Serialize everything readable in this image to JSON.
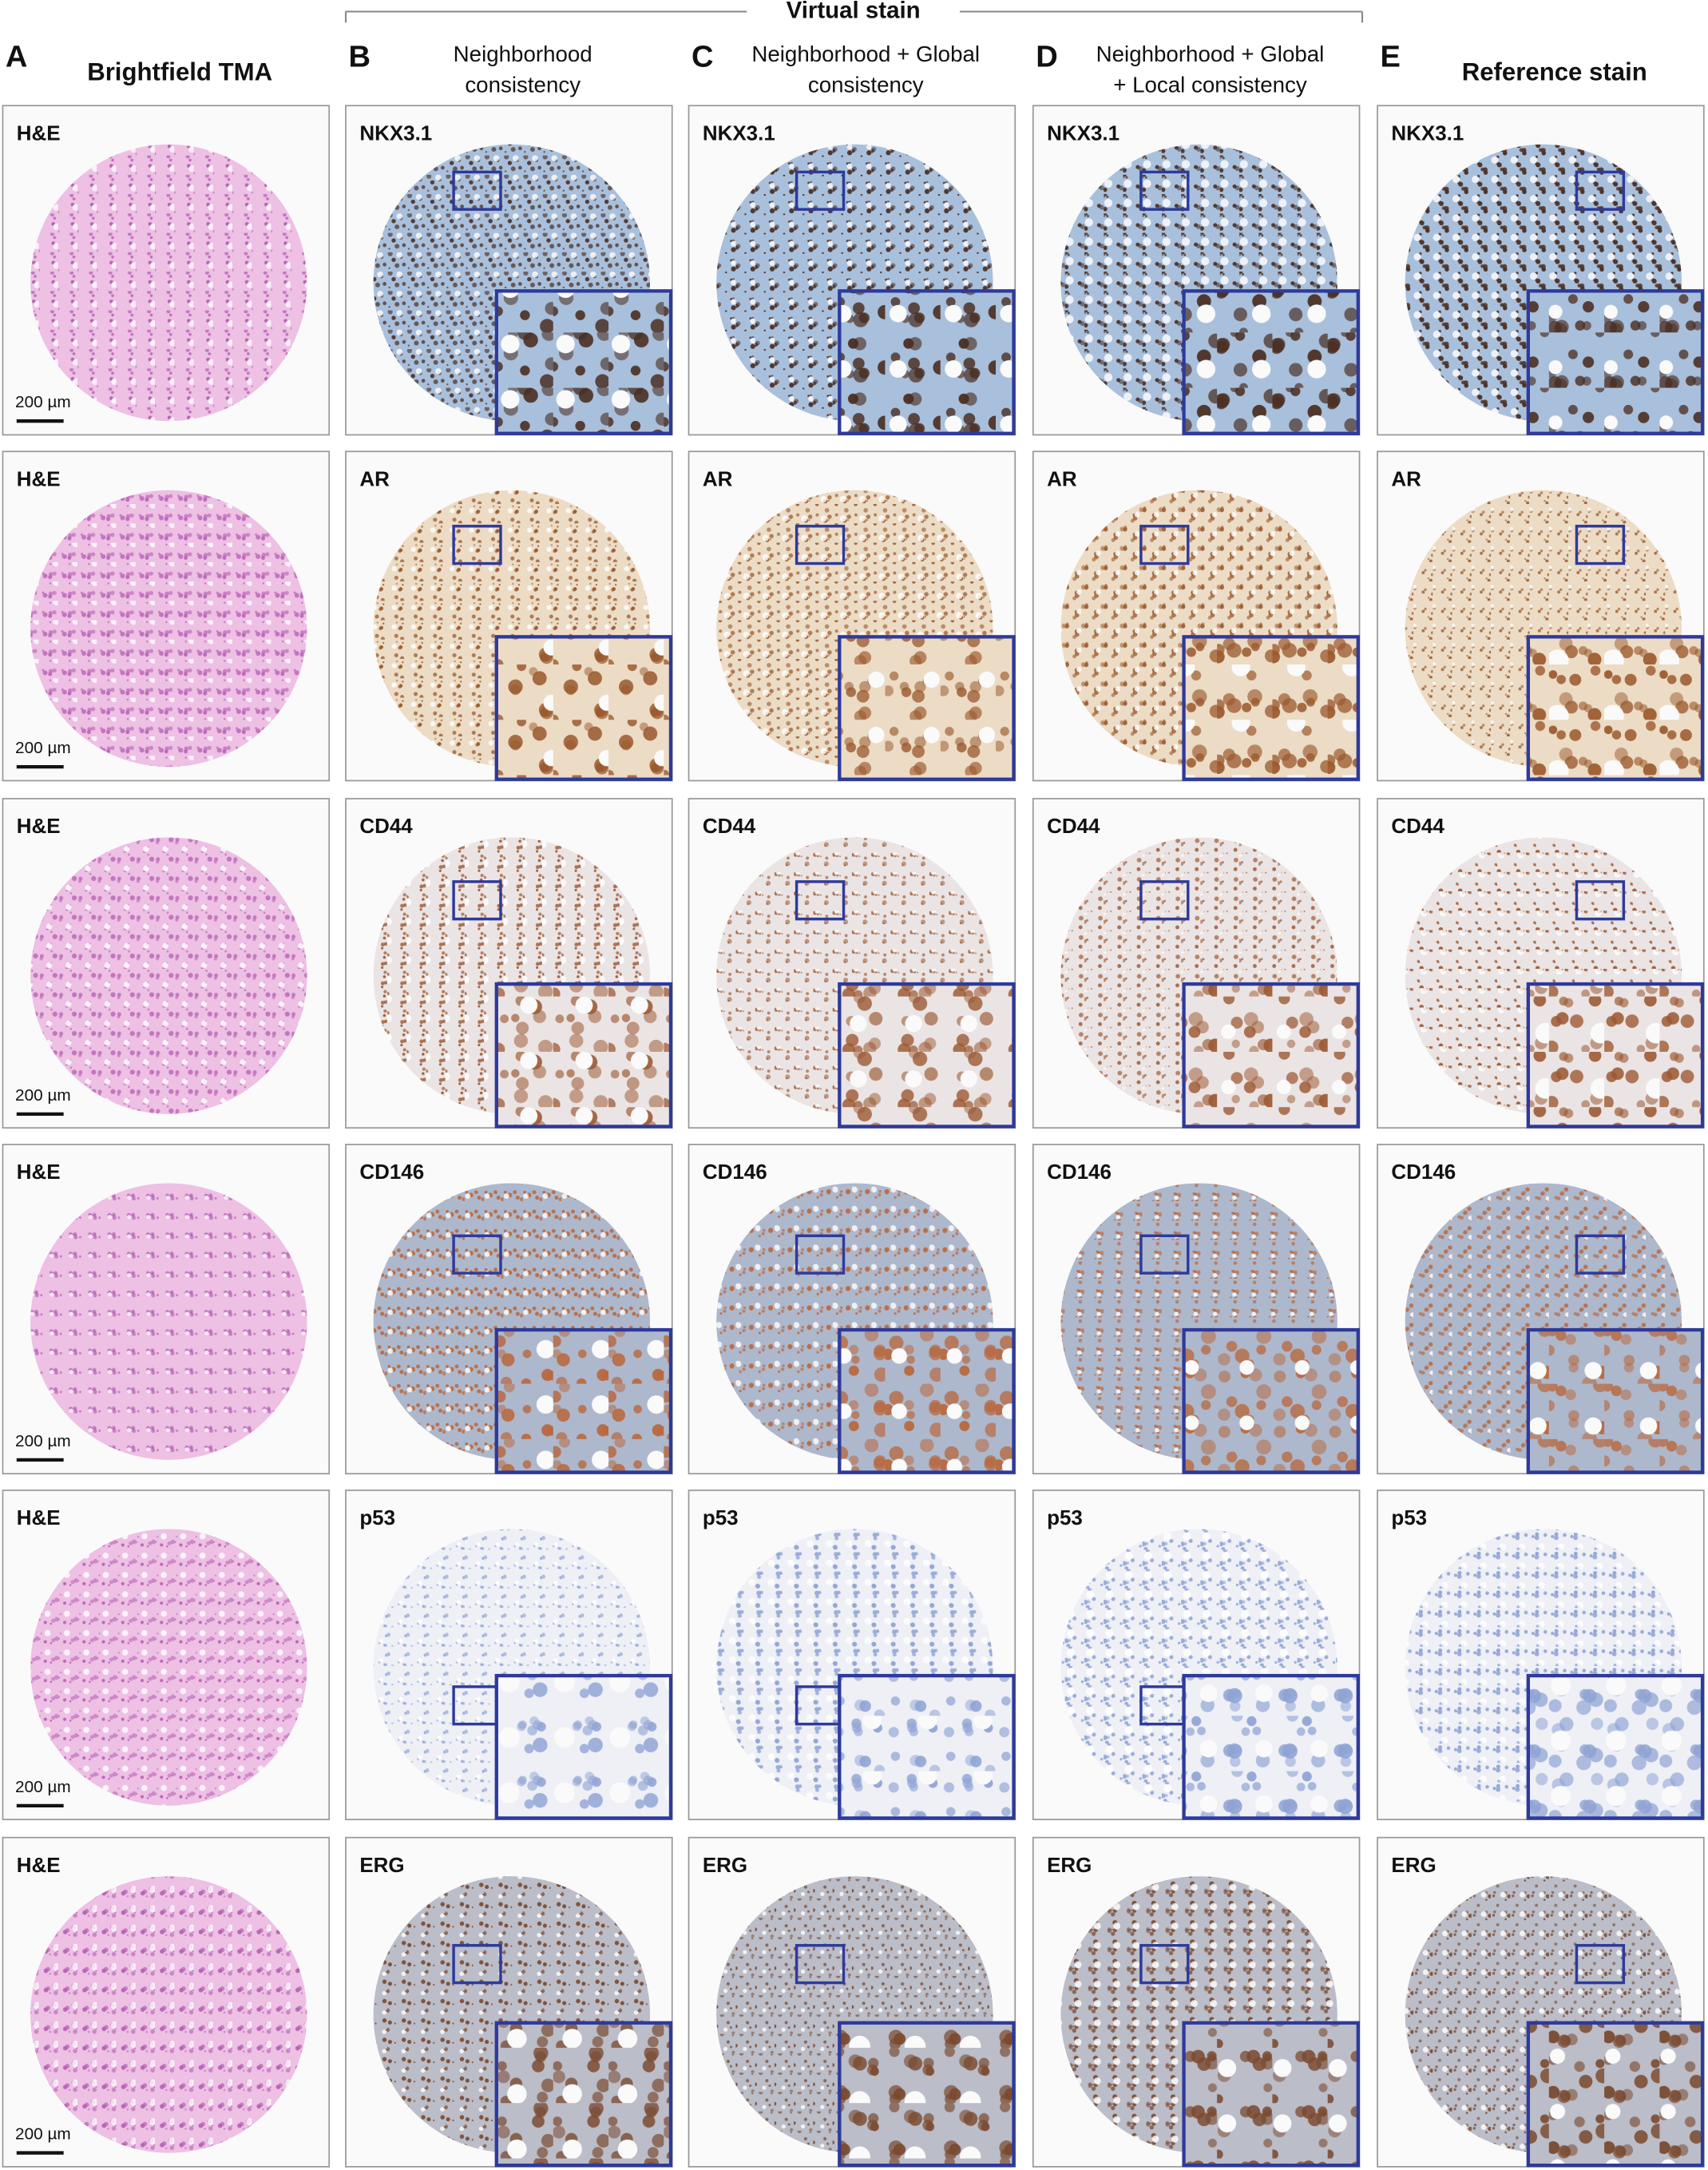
{
  "header": {
    "group_label": "Virtual stain"
  },
  "columns": [
    {
      "letter": "A",
      "title": [
        "Brightfield TMA"
      ]
    },
    {
      "letter": "B",
      "title": [
        "Neighborhood",
        "consistency"
      ]
    },
    {
      "letter": "C",
      "title": [
        "Neighborhood + Global",
        "consistency"
      ]
    },
    {
      "letter": "D",
      "title": [
        "Neighborhood + Global",
        "+ Local consistency"
      ]
    },
    {
      "letter": "E",
      "title": [
        "Reference stain"
      ]
    }
  ],
  "rows": [
    {
      "labels": [
        "H&E",
        "NKX3.1",
        "NKX3.1",
        "NKX3.1",
        "NKX3.1"
      ],
      "scale_bar": "200 µm"
    },
    {
      "labels": [
        "H&E",
        "AR",
        "AR",
        "AR",
        "AR"
      ],
      "scale_bar": "200 µm"
    },
    {
      "labels": [
        "H&E",
        "CD44",
        "CD44",
        "CD44",
        "CD44"
      ],
      "scale_bar": "200 µm"
    },
    {
      "labels": [
        "H&E",
        "CD146",
        "CD146",
        "CD146",
        "CD146"
      ],
      "scale_bar": "200 µm"
    },
    {
      "labels": [
        "H&E",
        "p53",
        "p53",
        "p53",
        "p53"
      ],
      "scale_bar": "200 µm"
    },
    {
      "labels": [
        "H&E",
        "ERG",
        "ERG",
        "ERG",
        "ERG"
      ],
      "scale_bar": "200 µm"
    }
  ]
}
